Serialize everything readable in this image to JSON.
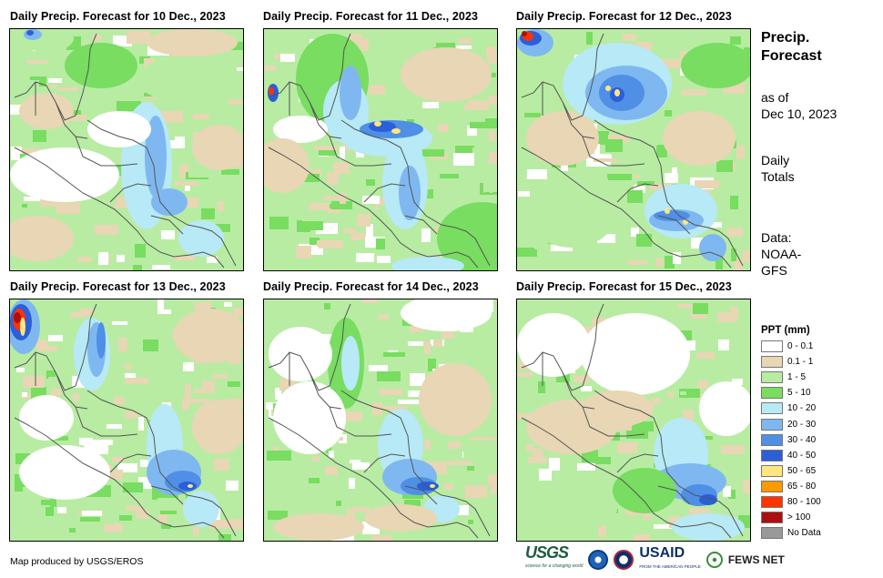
{
  "panels": [
    {
      "title": "Daily Precip. Forecast for 10 Dec., 2023"
    },
    {
      "title": "Daily Precip. Forecast for 11 Dec., 2023"
    },
    {
      "title": "Daily Precip. Forecast for 12 Dec., 2023"
    },
    {
      "title": "Daily Precip. Forecast for 13 Dec., 2023"
    },
    {
      "title": "Daily Precip. Forecast for 14 Dec., 2023"
    },
    {
      "title": "Daily Precip. Forecast for 15 Dec., 2023"
    }
  ],
  "sidebar": {
    "title_line1": "Precip.",
    "title_line2": "Forecast",
    "asof_line1": "as of",
    "asof_line2": "Dec 10, 2023",
    "totals_line1": "Daily",
    "totals_line2": "Totals",
    "source_line1": "Data:",
    "source_line2": "NOAA-",
    "source_line3": "GFS"
  },
  "legend": {
    "title": "PPT (mm)",
    "items": [
      {
        "label": "0 - 0.1",
        "color": "#ffffff"
      },
      {
        "label": "0.1 - 1",
        "color": "#e8d6b4"
      },
      {
        "label": "1 - 5",
        "color": "#b8eca3"
      },
      {
        "label": "5 - 10",
        "color": "#78dd60"
      },
      {
        "label": "10 - 20",
        "color": "#b7e9f6"
      },
      {
        "label": "20 - 30",
        "color": "#7fb8f0"
      },
      {
        "label": "30 - 40",
        "color": "#4f8fe6"
      },
      {
        "label": "40 - 50",
        "color": "#2b5fd8"
      },
      {
        "label": "50 - 65",
        "color": "#ffe680"
      },
      {
        "label": "65 - 80",
        "color": "#ff9900"
      },
      {
        "label": "80 - 100",
        "color": "#ff3300"
      },
      {
        "label": "> 100",
        "color": "#aa1010"
      },
      {
        "label": "No Data",
        "color": "#999999"
      }
    ]
  },
  "footer": {
    "credit": "Map produced by USGS/EROS",
    "logo_usgs": "USGS",
    "logo_usgs_tagline": "science for a changing world",
    "logo_usaid": "USAID",
    "logo_usaid_tagline": "FROM THE AMERICAN PEOPLE",
    "logo_fews": "FEWS NET"
  }
}
